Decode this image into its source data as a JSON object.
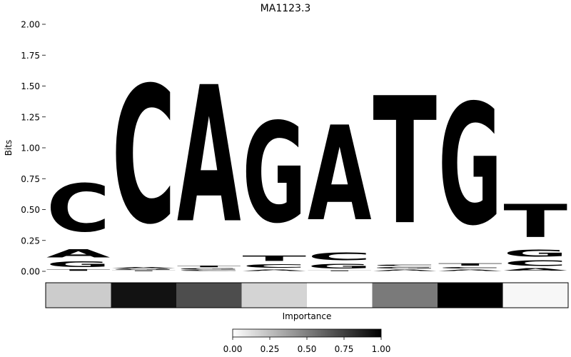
{
  "chart_data": {
    "type": "sequence-logo",
    "title": "MA1123.3",
    "ylabel": "Bits",
    "ylim": [
      0,
      2.0
    ],
    "yticks": [
      "0.00",
      "0.25",
      "0.50",
      "0.75",
      "1.00",
      "1.25",
      "1.50",
      "1.75",
      "2.00"
    ],
    "ytick_values": [
      0,
      0.25,
      0.5,
      0.75,
      1.0,
      1.25,
      1.5,
      1.75,
      2.0
    ],
    "colors": {
      "A": "#4ca64c",
      "C": "#4b4bff",
      "G": "#ffbe4c",
      "T": "#ff4c4c"
    },
    "positions": [
      {
        "stack": [
          [
            "T",
            0.02
          ],
          [
            "G",
            0.07
          ],
          [
            "A",
            0.11
          ],
          [
            "C",
            0.62
          ]
        ]
      },
      {
        "stack": [
          [
            "T",
            0.01
          ],
          [
            "G",
            0.01
          ],
          [
            "A",
            0.02
          ],
          [
            "C",
            1.78
          ]
        ]
      },
      {
        "stack": [
          [
            "C",
            0.01
          ],
          [
            "G",
            0.02
          ],
          [
            "T",
            0.02
          ],
          [
            "A",
            1.77
          ]
        ]
      },
      {
        "stack": [
          [
            "A",
            0.02
          ],
          [
            "C",
            0.05
          ],
          [
            "T",
            0.07
          ],
          [
            "G",
            1.3
          ]
        ]
      },
      {
        "stack": [
          [
            "T",
            0.01
          ],
          [
            "G",
            0.06
          ],
          [
            "C",
            0.1
          ],
          [
            "A",
            1.23
          ]
        ]
      },
      {
        "stack": [
          [
            "A",
            0.02
          ],
          [
            "G",
            0.02
          ],
          [
            "C",
            0.02
          ],
          [
            "T",
            1.65
          ]
        ]
      },
      {
        "stack": [
          [
            "A",
            0.02
          ],
          [
            "C",
            0.02
          ],
          [
            "T",
            0.03
          ],
          [
            "G",
            1.57
          ]
        ]
      },
      {
        "stack": [
          [
            "A",
            0.03
          ],
          [
            "C",
            0.07
          ],
          [
            "G",
            0.09
          ],
          [
            "T",
            0.43
          ]
        ]
      }
    ],
    "importance": {
      "label": "Importance",
      "values": [
        0.2,
        0.93,
        0.7,
        0.17,
        0.0,
        0.52,
        1.0,
        0.03
      ],
      "colorbar_ticks": [
        "0.00",
        "0.25",
        "0.50",
        "0.75",
        "1.00"
      ],
      "colorbar_range": [
        0,
        1
      ]
    }
  }
}
